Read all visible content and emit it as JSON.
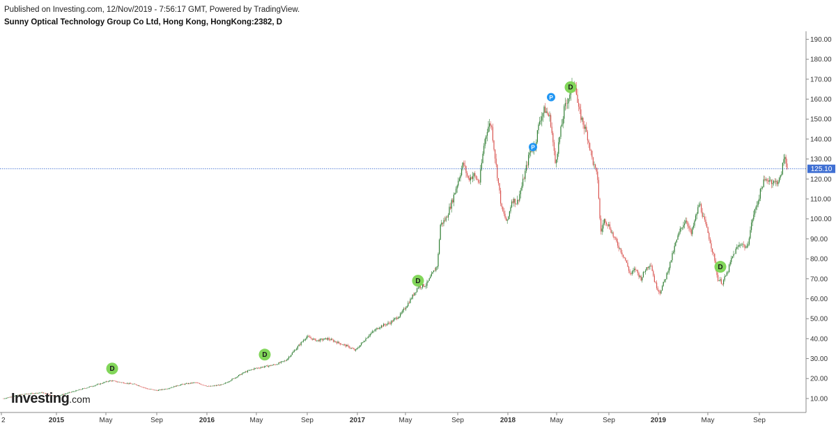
{
  "header": {
    "published": "Published on Investing.com, 12/Nov/2019 - 7:56:17 GMT, Powered by TradingView.",
    "title": "Sunny Optical Technology Group Co Ltd, Hong Kong, HongKong:2382, D"
  },
  "logo": {
    "brand": "Investing",
    "suffix": ".com"
  },
  "chart_data": {
    "type": "candlestick",
    "title": "Sunny Optical Technology Group Co Ltd, Hong Kong, HongKong:2382, D",
    "ylim": [
      3,
      194
    ],
    "y_ticks": [
      10,
      20,
      30,
      40,
      50,
      60,
      70,
      80,
      90,
      100,
      110,
      120,
      130,
      140,
      150,
      160,
      170,
      180,
      190
    ],
    "y_tick_labels": [
      "10.00",
      "20.00",
      "30.00",
      "40.00",
      "50.00",
      "60.00",
      "70.00",
      "80.00",
      "90.00",
      "100.00",
      "110.00",
      "120.00",
      "130.00",
      "140.00",
      "150.00",
      "160.00",
      "170.00",
      "180.00",
      "190.00"
    ],
    "x_range": [
      0,
      1138
    ],
    "x_ticks": [
      {
        "label": "2",
        "x": 2
      },
      {
        "label": "2015",
        "x": 81,
        "bold": true
      },
      {
        "label": "May",
        "x": 152
      },
      {
        "label": "Sep",
        "x": 225
      },
      {
        "label": "2016",
        "x": 297,
        "bold": true
      },
      {
        "label": "May",
        "x": 368
      },
      {
        "label": "Sep",
        "x": 441
      },
      {
        "label": "2017",
        "x": 513,
        "bold": true
      },
      {
        "label": "May",
        "x": 582
      },
      {
        "label": "Sep",
        "x": 657
      },
      {
        "label": "2018",
        "x": 729,
        "bold": true
      },
      {
        "label": "May",
        "x": 799
      },
      {
        "label": "Sep",
        "x": 874
      },
      {
        "label": "2019",
        "x": 945,
        "bold": true
      },
      {
        "label": "May",
        "x": 1016
      },
      {
        "label": "Sep",
        "x": 1090
      }
    ],
    "last_price": 125.1,
    "last_price_label": "125.10",
    "price_path": [
      [
        5,
        10
      ],
      [
        30,
        12
      ],
      [
        60,
        13
      ],
      [
        80,
        11
      ],
      [
        100,
        13
      ],
      [
        120,
        15
      ],
      [
        140,
        17
      ],
      [
        158,
        19
      ],
      [
        175,
        18
      ],
      [
        195,
        17
      ],
      [
        210,
        15
      ],
      [
        225,
        14
      ],
      [
        240,
        15
      ],
      [
        260,
        17
      ],
      [
        280,
        18
      ],
      [
        300,
        16
      ],
      [
        320,
        17
      ],
      [
        335,
        20
      ],
      [
        350,
        23
      ],
      [
        365,
        25
      ],
      [
        380,
        26
      ],
      [
        395,
        27
      ],
      [
        410,
        29
      ],
      [
        425,
        35
      ],
      [
        440,
        41
      ],
      [
        455,
        39
      ],
      [
        470,
        40
      ],
      [
        485,
        38
      ],
      [
        500,
        36
      ],
      [
        510,
        34
      ],
      [
        520,
        38
      ],
      [
        530,
        42
      ],
      [
        545,
        46
      ],
      [
        560,
        48
      ],
      [
        575,
        52
      ],
      [
        590,
        60
      ],
      [
        600,
        66
      ],
      [
        612,
        67
      ],
      [
        620,
        72
      ],
      [
        628,
        77
      ],
      [
        632,
        97
      ],
      [
        640,
        100
      ],
      [
        650,
        110
      ],
      [
        655,
        116
      ],
      [
        665,
        128
      ],
      [
        672,
        120
      ],
      [
        680,
        122
      ],
      [
        688,
        118
      ],
      [
        695,
        138
      ],
      [
        700,
        146
      ],
      [
        705,
        148
      ],
      [
        712,
        127
      ],
      [
        720,
        105
      ],
      [
        728,
        98
      ],
      [
        735,
        110
      ],
      [
        742,
        108
      ],
      [
        748,
        115
      ],
      [
        755,
        125
      ],
      [
        760,
        133
      ],
      [
        768,
        137
      ],
      [
        775,
        150
      ],
      [
        782,
        155
      ],
      [
        790,
        150
      ],
      [
        797,
        128
      ],
      [
        803,
        140
      ],
      [
        810,
        155
      ],
      [
        818,
        163
      ],
      [
        825,
        170
      ],
      [
        830,
        155
      ],
      [
        837,
        148
      ],
      [
        843,
        142
      ],
      [
        850,
        130
      ],
      [
        858,
        120
      ],
      [
        862,
        93
      ],
      [
        868,
        100
      ],
      [
        875,
        96
      ],
      [
        882,
        90
      ],
      [
        890,
        85
      ],
      [
        897,
        80
      ],
      [
        905,
        72
      ],
      [
        912,
        75
      ],
      [
        920,
        70
      ],
      [
        927,
        75
      ],
      [
        934,
        78
      ],
      [
        940,
        68
      ],
      [
        947,
        63
      ],
      [
        955,
        70
      ],
      [
        962,
        78
      ],
      [
        970,
        88
      ],
      [
        977,
        95
      ],
      [
        985,
        100
      ],
      [
        992,
        92
      ],
      [
        998,
        100
      ],
      [
        1004,
        108
      ],
      [
        1010,
        100
      ],
      [
        1017,
        92
      ],
      [
        1024,
        82
      ],
      [
        1030,
        70
      ],
      [
        1037,
        68
      ],
      [
        1044,
        73
      ],
      [
        1050,
        80
      ],
      [
        1057,
        85
      ],
      [
        1064,
        88
      ],
      [
        1072,
        85
      ],
      [
        1080,
        100
      ],
      [
        1087,
        108
      ],
      [
        1095,
        118
      ],
      [
        1103,
        120
      ],
      [
        1112,
        118
      ],
      [
        1120,
        120
      ],
      [
        1126,
        132
      ],
      [
        1131,
        125
      ]
    ],
    "markers": [
      {
        "type": "D",
        "x": 161,
        "y": 25
      },
      {
        "type": "D",
        "x": 380,
        "y": 32
      },
      {
        "type": "D",
        "x": 600,
        "y": 69
      },
      {
        "type": "P",
        "x": 765,
        "y": 136
      },
      {
        "type": "P",
        "x": 791,
        "y": 161
      },
      {
        "type": "D",
        "x": 819,
        "y": 166
      },
      {
        "type": "D",
        "x": 1034,
        "y": 76
      }
    ],
    "colors": {
      "up": "#2e7d32",
      "down": "#d9534f",
      "dividend": "#82d65a",
      "split": "#2196f3",
      "price_line": "#3f6fd3",
      "axis": "#888888"
    }
  }
}
